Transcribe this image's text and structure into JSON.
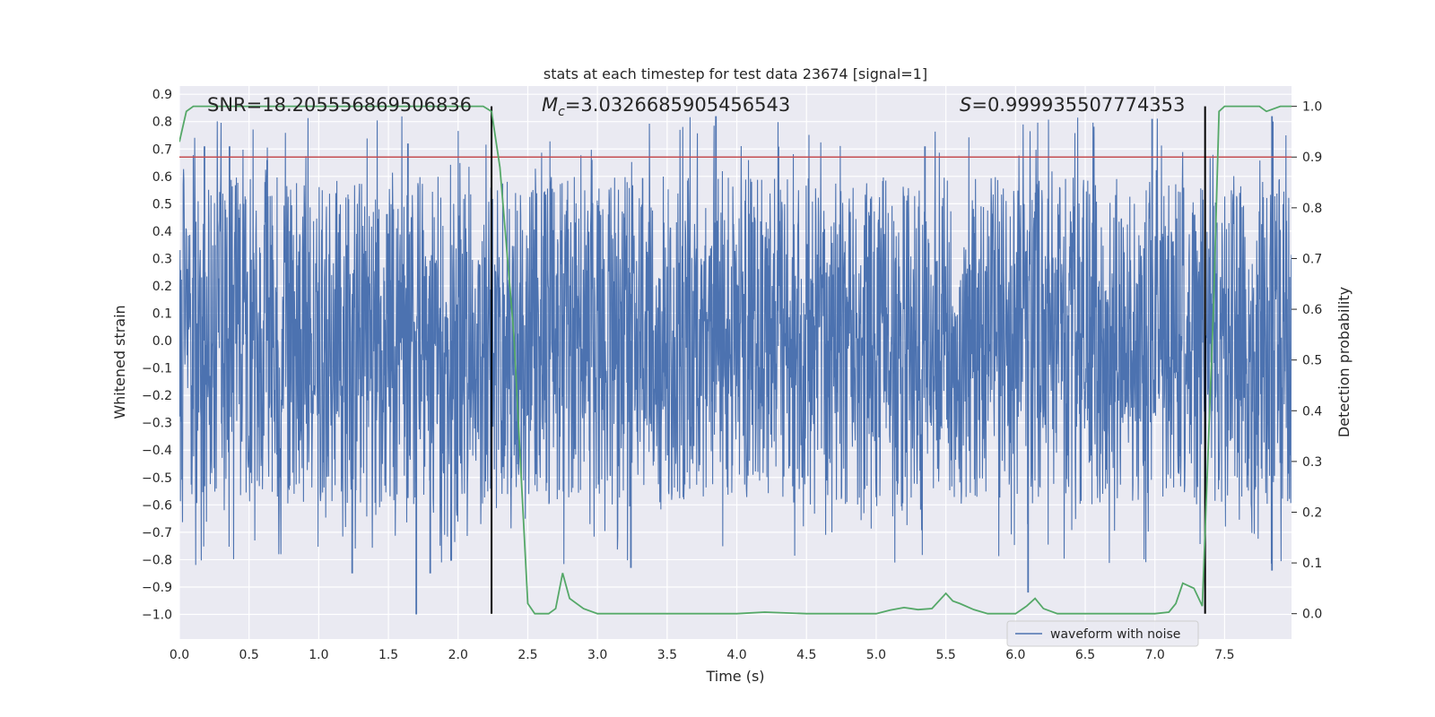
{
  "chart_data": {
    "type": "line",
    "title": "stats at each timestep for test data 23674 [signal=1]",
    "xlabel": "Time (s)",
    "ylabel": "Whitened strain",
    "ylabel_right": "Detection probability",
    "xlim": [
      0.0,
      7.98
    ],
    "ylim": [
      -1.09,
      0.93
    ],
    "ylim_right": [
      -0.05,
      1.04
    ],
    "x_ticks": [
      0.0,
      0.5,
      1.0,
      1.5,
      2.0,
      2.5,
      3.0,
      3.5,
      4.0,
      4.5,
      5.0,
      5.5,
      6.0,
      6.5,
      7.0,
      7.5
    ],
    "x_tick_labels": [
      "0.0",
      "0.5",
      "1.0",
      "1.5",
      "2.0",
      "2.5",
      "3.0",
      "3.5",
      "4.0",
      "4.5",
      "5.0",
      "5.5",
      "6.0",
      "6.5",
      "7.0",
      "7.5"
    ],
    "y_ticks": [
      0.9,
      0.8,
      0.7,
      0.6,
      0.5,
      0.4,
      0.3,
      0.2,
      0.1,
      0.0,
      -0.1,
      -0.2,
      -0.3,
      -0.4,
      -0.5,
      -0.6,
      -0.7,
      -0.8,
      -0.9,
      -1.0
    ],
    "y_tick_labels": [
      "0.9",
      "0.8",
      "0.7",
      "0.6",
      "0.5",
      "0.4",
      "0.3",
      "0.2",
      "0.1",
      "0.0",
      "−0.1",
      "−0.2",
      "−0.3",
      "−0.4",
      "−0.5",
      "−0.6",
      "−0.7",
      "−0.8",
      "−0.9",
      "−1.0"
    ],
    "y_right_ticks": [
      1.0,
      0.9,
      0.8,
      0.7,
      0.6,
      0.5,
      0.4,
      0.3,
      0.2,
      0.1,
      0.0
    ],
    "y_right_tick_labels": [
      "1.0",
      "0.9",
      "0.8",
      "0.7",
      "0.6",
      "0.5",
      "0.4",
      "0.3",
      "0.2",
      "0.1",
      "0.0"
    ],
    "grid": true,
    "legend_position": "lower-right",
    "annotations": {
      "snr": "SNR=18.205556869506836",
      "mc_symbol": "M",
      "mc_sub": "c",
      "mc_value": "=3.0326685905456543",
      "s_symbol": "S",
      "s_value": "=0.999935507774353"
    },
    "threshold_line": {
      "y_right": 0.9,
      "color": "#c44e52"
    },
    "vertical_lines": [
      2.24,
      7.36
    ],
    "series": [
      {
        "name": "waveform with noise",
        "axis": "left",
        "color": "#4c72b0",
        "noise_envelope": {
          "core_amplitude": 0.3,
          "typical_peak": 0.6,
          "max_peak": 0.82,
          "min_trough": -1.0
        },
        "notable_peaks": [
          {
            "x": 0.18,
            "y": 0.71
          },
          {
            "x": 0.36,
            "y": 0.71
          },
          {
            "x": 0.63,
            "y": 0.66
          },
          {
            "x": 1.64,
            "y": 0.72
          },
          {
            "x": 3.85,
            "y": 0.82
          },
          {
            "x": 5.35,
            "y": 0.71
          },
          {
            "x": 6.98,
            "y": 0.81
          },
          {
            "x": 7.84,
            "y": 0.82
          },
          {
            "x": 1.24,
            "y": -0.85
          },
          {
            "x": 1.7,
            "y": -1.0
          },
          {
            "x": 1.8,
            "y": -0.85
          },
          {
            "x": 1.95,
            "y": -0.8
          },
          {
            "x": 3.24,
            "y": -0.83
          },
          {
            "x": 6.09,
            "y": -0.92
          },
          {
            "x": 7.84,
            "y": -0.84
          }
        ]
      },
      {
        "name": "",
        "axis": "right",
        "color": "#55a868",
        "x": [
          0.0,
          0.05,
          0.1,
          0.2,
          0.4,
          0.8,
          1.2,
          1.6,
          2.0,
          2.18,
          2.24,
          2.3,
          2.4,
          2.5,
          2.55,
          2.6,
          2.65,
          2.7,
          2.75,
          2.8,
          2.9,
          3.0,
          3.2,
          3.5,
          4.0,
          4.2,
          4.5,
          5.0,
          5.1,
          5.2,
          5.3,
          5.4,
          5.5,
          5.55,
          5.6,
          5.7,
          5.8,
          6.0,
          6.08,
          6.14,
          6.2,
          6.3,
          6.5,
          7.0,
          7.1,
          7.15,
          7.2,
          7.28,
          7.34,
          7.42,
          7.46,
          7.5,
          7.6,
          7.75,
          7.8,
          7.9,
          7.98
        ],
        "y": [
          0.93,
          0.99,
          1.0,
          1.0,
          1.0,
          1.0,
          1.0,
          1.0,
          1.0,
          1.0,
          0.99,
          0.88,
          0.55,
          0.02,
          0.0,
          0.0,
          0.0,
          0.01,
          0.08,
          0.03,
          0.01,
          0.0,
          0.0,
          0.0,
          0.0,
          0.003,
          0.0,
          0.0,
          0.007,
          0.012,
          0.008,
          0.01,
          0.04,
          0.025,
          0.02,
          0.008,
          0.0,
          0.0,
          0.015,
          0.03,
          0.01,
          0.0,
          0.0,
          0.0,
          0.003,
          0.02,
          0.06,
          0.05,
          0.015,
          0.6,
          0.99,
          1.0,
          1.0,
          1.0,
          0.99,
          1.0,
          1.0
        ]
      }
    ]
  }
}
